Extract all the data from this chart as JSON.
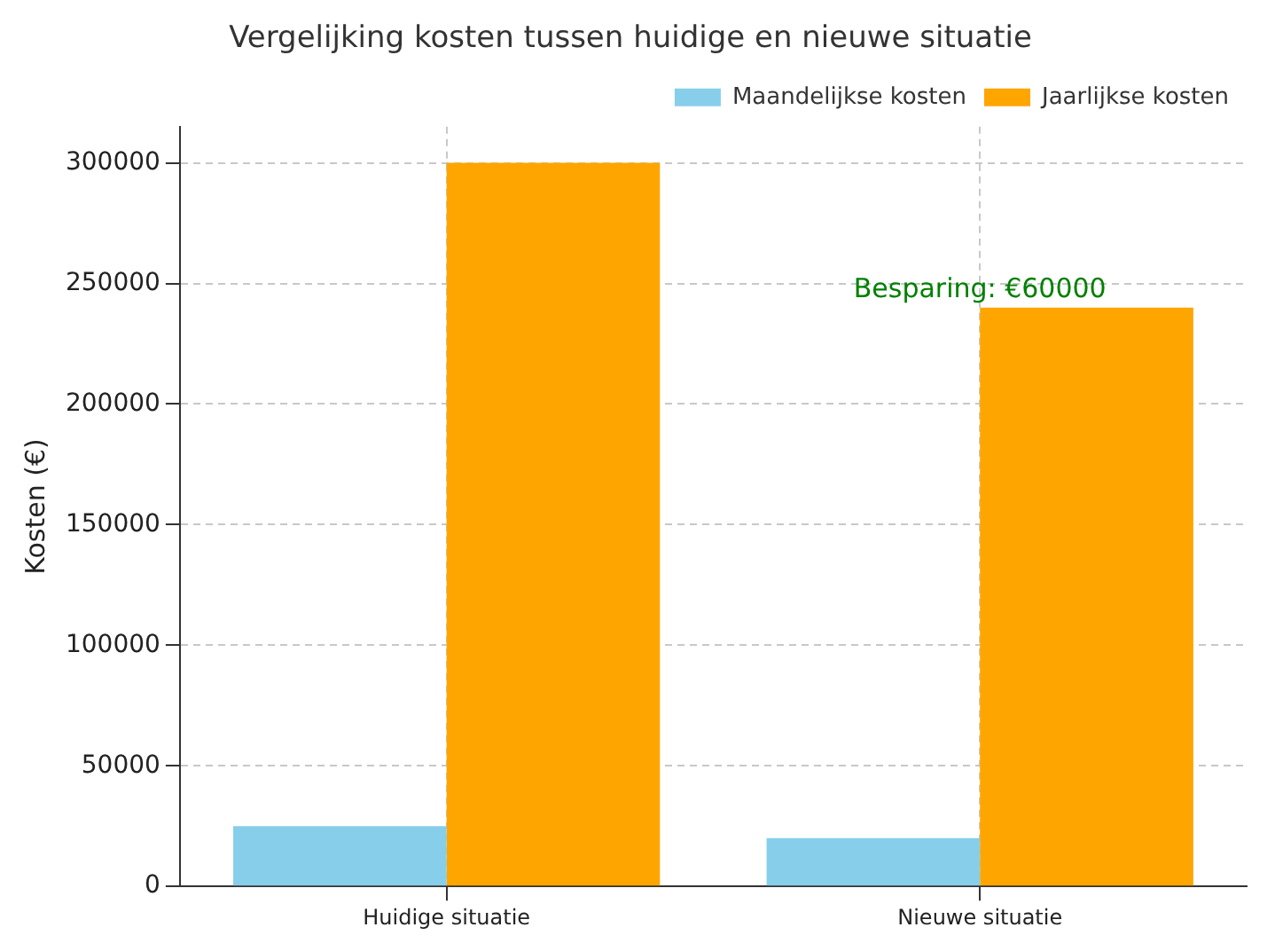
{
  "chart_data": {
    "type": "bar",
    "title": "Vergelijking kosten tussen huidige en nieuwe situatie",
    "ylabel": "Kosten (€)",
    "categories": [
      "Huidige situatie",
      "Nieuwe situatie"
    ],
    "series": [
      {
        "name": "Maandelijkse kosten",
        "color": "#87ceeb",
        "values": [
          25000,
          20000
        ]
      },
      {
        "name": "Jaarlijkse kosten",
        "color": "#ffa500",
        "values": [
          300000,
          240000
        ]
      }
    ],
    "ylim": [
      0,
      315000
    ],
    "yticks": [
      0,
      50000,
      100000,
      150000,
      200000,
      250000,
      300000
    ],
    "grid": true,
    "legend": "top right",
    "annotations": [
      {
        "text": "Besparing: €60000",
        "x": "Nieuwe situatie",
        "y": 240000
      }
    ]
  }
}
